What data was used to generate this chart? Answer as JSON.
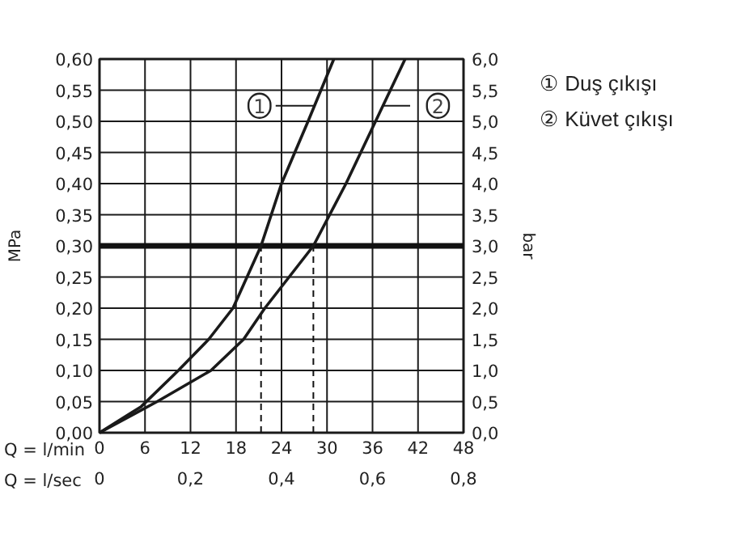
{
  "chart_data": {
    "type": "line",
    "xlabel": "Q = l/min",
    "x2label": "Q = l/sec",
    "ylabel": "MPa",
    "y2label": "bar",
    "xlim": [
      0,
      48
    ],
    "xticks": [
      0,
      6,
      12,
      18,
      24,
      30,
      36,
      42,
      48
    ],
    "x2lim": [
      0,
      0.8
    ],
    "x2ticks": [
      0,
      {
        "value": 0.2,
        "label": "0,2"
      },
      {
        "value": 0.4,
        "label": "0,4"
      },
      {
        "value": 0.6,
        "label": "0,6"
      },
      {
        "value": 0.8,
        "label": "0,8"
      }
    ],
    "ylim": [
      0,
      0.6
    ],
    "yticks": [
      {
        "value": 0,
        "label": "0,00"
      },
      {
        "value": 0.05,
        "label": "0,05"
      },
      {
        "value": 0.1,
        "label": "0,10"
      },
      {
        "value": 0.15,
        "label": "0,15"
      },
      {
        "value": 0.2,
        "label": "0,20"
      },
      {
        "value": 0.25,
        "label": "0,25"
      },
      {
        "value": 0.3,
        "label": "0,30"
      },
      {
        "value": 0.35,
        "label": "0,35"
      },
      {
        "value": 0.4,
        "label": "0,40"
      },
      {
        "value": 0.45,
        "label": "0,45"
      },
      {
        "value": 0.5,
        "label": "0,50"
      },
      {
        "value": 0.55,
        "label": "0,55"
      },
      {
        "value": 0.6,
        "label": "0,60"
      }
    ],
    "y2lim": [
      0,
      6
    ],
    "y2ticks": [
      {
        "value": 0,
        "label": "0,0"
      },
      {
        "value": 0.5,
        "label": "0,5"
      },
      {
        "value": 1,
        "label": "1,0"
      },
      {
        "value": 1.5,
        "label": "1,5"
      },
      {
        "value": 2,
        "label": "2,0"
      },
      {
        "value": 2.5,
        "label": "2,5"
      },
      {
        "value": 3,
        "label": "3,0"
      },
      {
        "value": 3.5,
        "label": "3,5"
      },
      {
        "value": 4,
        "label": "4,0"
      },
      {
        "value": 4.5,
        "label": "4,5"
      },
      {
        "value": 5,
        "label": "5,0"
      },
      {
        "value": 5.5,
        "label": "5,5"
      },
      {
        "value": 6,
        "label": "6,0"
      }
    ],
    "grid": true,
    "marker": "none",
    "line_style": "solid",
    "series": [
      {
        "name": "1",
        "color": "#1a1a1a",
        "x": [
          0,
          5.5,
          10.4,
          14.4,
          17.6,
          21.3,
          24.0,
          27.5,
          30.9
        ],
        "values": [
          0,
          0.042,
          0.1,
          0.15,
          0.2,
          0.3,
          0.4,
          0.5,
          0.6
        ]
      },
      {
        "name": "2",
        "color": "#1a1a1a",
        "x": [
          0,
          7.6,
          14.7,
          19.0,
          21.8,
          28.2,
          32.5,
          36.4,
          40.3
        ],
        "values": [
          0,
          0.05,
          0.1,
          0.15,
          0.2,
          0.3,
          0.4,
          0.5,
          0.6
        ]
      }
    ],
    "ref_lines": [
      {
        "axis": "y",
        "value": 0.3,
        "color": "#111111",
        "line_style": "solid"
      },
      {
        "axis": "x",
        "value": 21.3,
        "color": "#111111",
        "line_style": "dashed"
      },
      {
        "axis": "x",
        "value": 28.2,
        "color": "#111111",
        "line_style": "dashed"
      }
    ],
    "annotations": [
      "① Duş çıkışı",
      "② Küvet çıkışı"
    ]
  }
}
